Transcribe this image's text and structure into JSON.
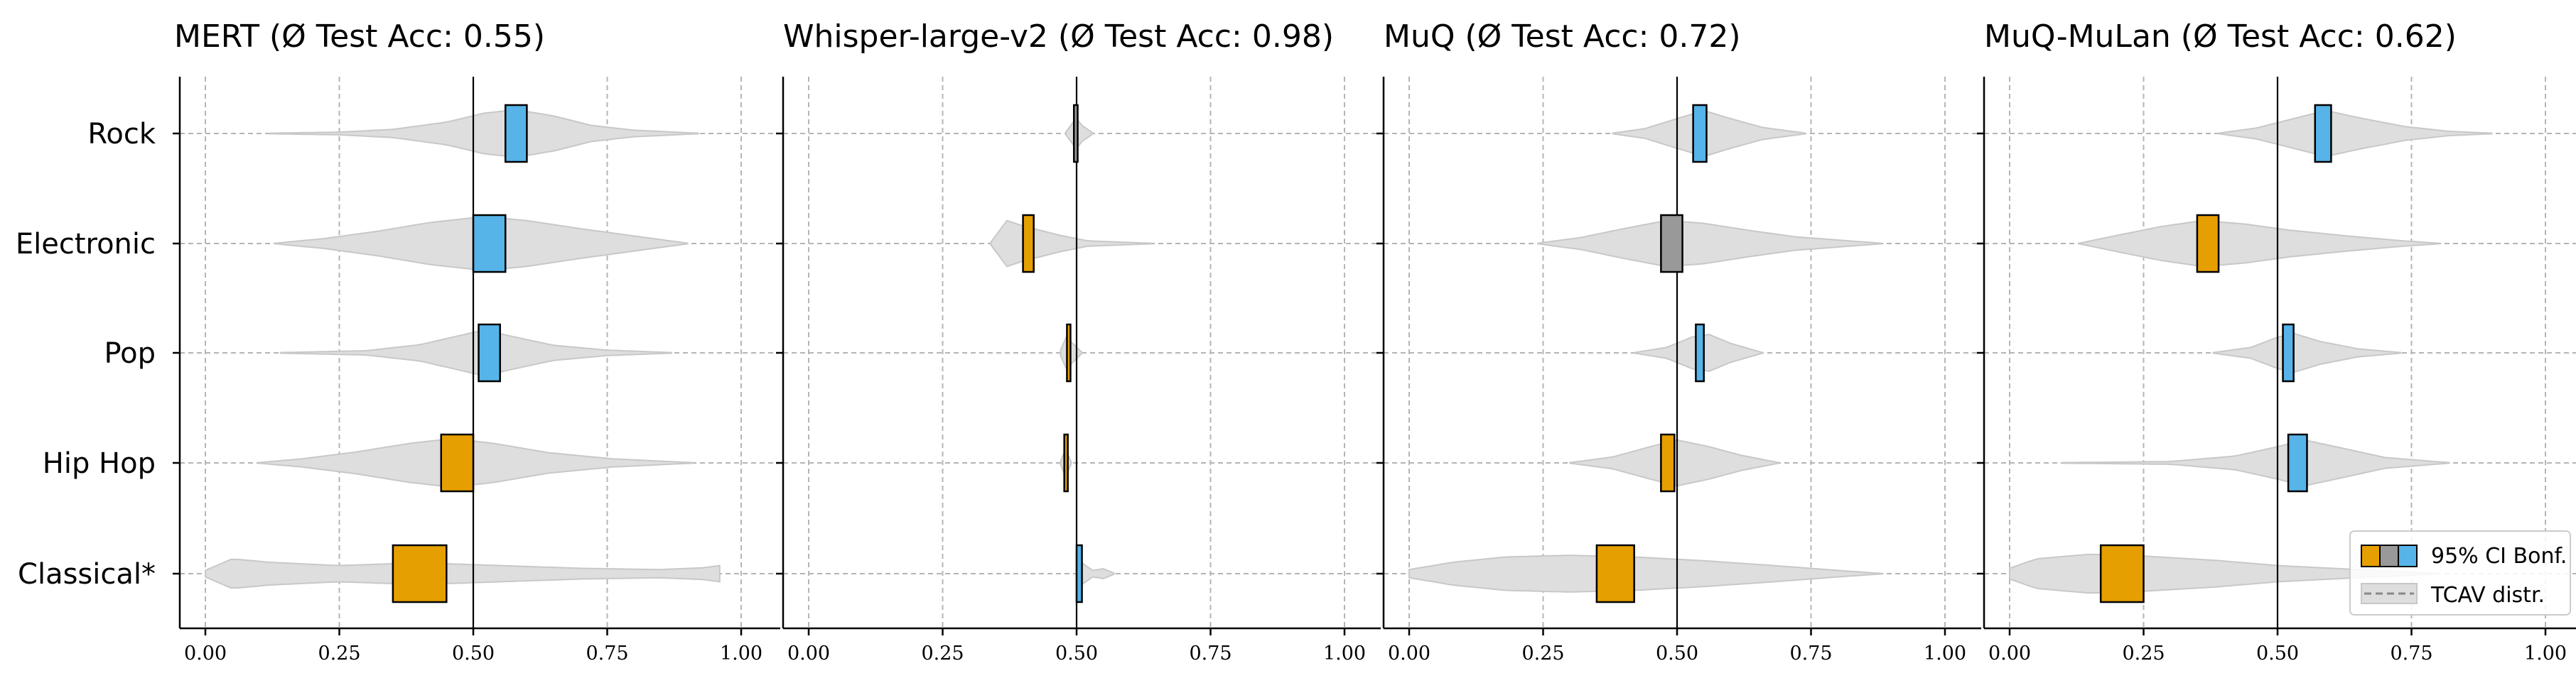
{
  "colors": {
    "negative": "#E69F00",
    "neutral": "#999999",
    "positive": "#56B4E9",
    "violin": "#dedede",
    "violin_edge": "#c8c8c8",
    "grid": "#b5b5b5"
  },
  "legend": {
    "ci_label": "95% CI Bonf.",
    "tcav_label": "TCAV distr.",
    "location": "lower right of last panel"
  },
  "chart_data": [
    {
      "type": "violin",
      "title": "MERT (Ø Test Acc: 0.55)",
      "categories": [
        "Rock",
        "Electronic",
        "Pop",
        "Hip Hop",
        "Classical*"
      ],
      "xlim": [
        0,
        1
      ],
      "xticks": [
        "0.00",
        "0.25",
        "0.50",
        "0.75",
        "1.00"
      ],
      "reference_line": 0.5,
      "grid": true,
      "rows": [
        {
          "label": "Rock",
          "range": [
            0.12,
            0.92
          ],
          "ci": [
            0.56,
            0.6
          ],
          "status": "positive",
          "density": [
            [
              0.12,
              0.01
            ],
            [
              0.25,
              0.05
            ],
            [
              0.35,
              0.15
            ],
            [
              0.45,
              0.42
            ],
            [
              0.52,
              0.75
            ],
            [
              0.58,
              0.88
            ],
            [
              0.65,
              0.65
            ],
            [
              0.72,
              0.3
            ],
            [
              0.8,
              0.12
            ],
            [
              0.92,
              0.01
            ]
          ]
        },
        {
          "label": "Electronic",
          "range": [
            0.13,
            0.9
          ],
          "ci": [
            0.5,
            0.56
          ],
          "status": "positive",
          "density": [
            [
              0.13,
              0.01
            ],
            [
              0.22,
              0.18
            ],
            [
              0.32,
              0.45
            ],
            [
              0.42,
              0.78
            ],
            [
              0.52,
              1.0
            ],
            [
              0.6,
              0.85
            ],
            [
              0.7,
              0.55
            ],
            [
              0.8,
              0.28
            ],
            [
              0.9,
              0.01
            ]
          ]
        },
        {
          "label": "Pop",
          "range": [
            0.14,
            0.87
          ],
          "ci": [
            0.51,
            0.55
          ],
          "status": "positive",
          "density": [
            [
              0.14,
              0.01
            ],
            [
              0.3,
              0.08
            ],
            [
              0.4,
              0.3
            ],
            [
              0.47,
              0.62
            ],
            [
              0.52,
              0.85
            ],
            [
              0.57,
              0.62
            ],
            [
              0.65,
              0.28
            ],
            [
              0.75,
              0.1
            ],
            [
              0.87,
              0.01
            ]
          ]
        },
        {
          "label": "Hip Hop",
          "range": [
            0.1,
            0.91
          ],
          "ci": [
            0.44,
            0.5
          ],
          "status": "negative",
          "density": [
            [
              0.1,
              0.01
            ],
            [
              0.18,
              0.15
            ],
            [
              0.28,
              0.4
            ],
            [
              0.38,
              0.72
            ],
            [
              0.46,
              0.9
            ],
            [
              0.54,
              0.72
            ],
            [
              0.64,
              0.38
            ],
            [
              0.76,
              0.15
            ],
            [
              0.91,
              0.01
            ]
          ]
        },
        {
          "label": "Classical*",
          "range": [
            0.0,
            0.96
          ],
          "ci": [
            0.35,
            0.45
          ],
          "status": "negative",
          "density": [
            [
              0.0,
              0.12
            ],
            [
              0.05,
              0.55
            ],
            [
              0.12,
              0.42
            ],
            [
              0.25,
              0.3
            ],
            [
              0.4,
              0.4
            ],
            [
              0.55,
              0.3
            ],
            [
              0.7,
              0.2
            ],
            [
              0.85,
              0.15
            ],
            [
              0.93,
              0.22
            ],
            [
              0.96,
              0.3
            ]
          ]
        }
      ]
    },
    {
      "type": "violin",
      "title": "Whisper-large-v2 (Ø Test Acc: 0.98)",
      "categories": [
        "Rock",
        "Electronic",
        "Pop",
        "Hip Hop",
        "Classical*"
      ],
      "xlim": [
        0,
        1
      ],
      "xticks": [
        "0.00",
        "0.25",
        "0.50",
        "0.75",
        "1.00"
      ],
      "reference_line": 0.5,
      "grid": true,
      "rows": [
        {
          "label": "Rock",
          "range": [
            0.48,
            0.53
          ],
          "ci": [
            0.495,
            0.502
          ],
          "status": "neutral",
          "density": [
            [
              0.48,
              0.05
            ],
            [
              0.495,
              0.45
            ],
            [
              0.5,
              0.55
            ],
            [
              0.51,
              0.3
            ],
            [
              0.53,
              0.02
            ]
          ]
        },
        {
          "label": "Electronic",
          "range": [
            0.34,
            0.64
          ],
          "ci": [
            0.4,
            0.42
          ],
          "status": "negative",
          "density": [
            [
              0.34,
              0.05
            ],
            [
              0.37,
              0.85
            ],
            [
              0.4,
              0.65
            ],
            [
              0.43,
              0.5
            ],
            [
              0.47,
              0.3
            ],
            [
              0.52,
              0.1
            ],
            [
              0.64,
              0.01
            ]
          ]
        },
        {
          "label": "Pop",
          "range": [
            0.47,
            0.51
          ],
          "ci": [
            0.482,
            0.487
          ],
          "status": "negative",
          "density": [
            [
              0.47,
              0.1
            ],
            [
              0.48,
              0.55
            ],
            [
              0.485,
              0.65
            ],
            [
              0.49,
              0.4
            ],
            [
              0.51,
              0.02
            ]
          ]
        },
        {
          "label": "Hip Hop",
          "range": [
            0.47,
            0.49
          ],
          "ci": [
            0.477,
            0.482
          ],
          "status": "negative",
          "density": [
            [
              0.47,
              0.05
            ],
            [
              0.478,
              0.45
            ],
            [
              0.482,
              0.4
            ],
            [
              0.49,
              0.02
            ]
          ]
        },
        {
          "label": "Classical*",
          "range": [
            0.5,
            0.57
          ],
          "ci": [
            0.5,
            0.51
          ],
          "status": "positive",
          "density": [
            [
              0.5,
              0.15
            ],
            [
              0.505,
              0.55
            ],
            [
              0.51,
              0.4
            ],
            [
              0.53,
              0.12
            ],
            [
              0.55,
              0.18
            ],
            [
              0.57,
              0.02
            ]
          ]
        }
      ]
    },
    {
      "type": "violin",
      "title": "MuQ (Ø Test Acc: 0.72)",
      "categories": [
        "Rock",
        "Electronic",
        "Pop",
        "Hip Hop",
        "Classical*"
      ],
      "xlim": [
        0,
        1
      ],
      "xticks": [
        "0.00",
        "0.25",
        "0.50",
        "0.75",
        "1.00"
      ],
      "reference_line": 0.5,
      "grid": true,
      "rows": [
        {
          "label": "Rock",
          "range": [
            0.38,
            0.74
          ],
          "ci": [
            0.53,
            0.555
          ],
          "status": "positive",
          "density": [
            [
              0.38,
              0.01
            ],
            [
              0.44,
              0.18
            ],
            [
              0.5,
              0.55
            ],
            [
              0.55,
              0.85
            ],
            [
              0.6,
              0.55
            ],
            [
              0.66,
              0.22
            ],
            [
              0.74,
              0.01
            ]
          ]
        },
        {
          "label": "Electronic",
          "range": [
            0.24,
            0.88
          ],
          "ci": [
            0.47,
            0.51
          ],
          "status": "neutral",
          "density": [
            [
              0.24,
              0.01
            ],
            [
              0.32,
              0.22
            ],
            [
              0.4,
              0.55
            ],
            [
              0.48,
              0.85
            ],
            [
              0.55,
              0.75
            ],
            [
              0.63,
              0.5
            ],
            [
              0.72,
              0.25
            ],
            [
              0.88,
              0.01
            ]
          ]
        },
        {
          "label": "Pop",
          "range": [
            0.42,
            0.66
          ],
          "ci": [
            0.535,
            0.55
          ],
          "status": "positive",
          "density": [
            [
              0.42,
              0.01
            ],
            [
              0.48,
              0.2
            ],
            [
              0.53,
              0.6
            ],
            [
              0.56,
              0.68
            ],
            [
              0.6,
              0.35
            ],
            [
              0.66,
              0.01
            ]
          ]
        },
        {
          "label": "Hip Hop",
          "range": [
            0.3,
            0.69
          ],
          "ci": [
            0.47,
            0.495
          ],
          "status": "negative",
          "density": [
            [
              0.3,
              0.01
            ],
            [
              0.38,
              0.22
            ],
            [
              0.45,
              0.6
            ],
            [
              0.5,
              0.85
            ],
            [
              0.56,
              0.6
            ],
            [
              0.62,
              0.28
            ],
            [
              0.69,
              0.01
            ]
          ]
        },
        {
          "label": "Classical*",
          "range": [
            0.0,
            0.88
          ],
          "ci": [
            0.35,
            0.42
          ],
          "status": "negative",
          "density": [
            [
              0.0,
              0.15
            ],
            [
              0.08,
              0.42
            ],
            [
              0.18,
              0.62
            ],
            [
              0.3,
              0.68
            ],
            [
              0.42,
              0.62
            ],
            [
              0.55,
              0.48
            ],
            [
              0.68,
              0.3
            ],
            [
              0.8,
              0.12
            ],
            [
              0.88,
              0.01
            ]
          ]
        }
      ]
    },
    {
      "type": "violin",
      "title": "MuQ-MuLan (Ø Test Acc: 0.62)",
      "categories": [
        "Rock",
        "Electronic",
        "Pop",
        "Hip Hop",
        "Classical*"
      ],
      "xlim": [
        0,
        1
      ],
      "xticks": [
        "0.00",
        "0.25",
        "0.50",
        "0.75",
        "1.00"
      ],
      "reference_line": 0.5,
      "grid": true,
      "rows": [
        {
          "label": "Rock",
          "range": [
            0.39,
            0.9
          ],
          "ci": [
            0.57,
            0.6
          ],
          "status": "positive",
          "density": [
            [
              0.39,
              0.01
            ],
            [
              0.46,
              0.2
            ],
            [
              0.53,
              0.55
            ],
            [
              0.59,
              0.85
            ],
            [
              0.66,
              0.55
            ],
            [
              0.74,
              0.25
            ],
            [
              0.82,
              0.08
            ],
            [
              0.9,
              0.01
            ]
          ]
        },
        {
          "label": "Electronic",
          "range": [
            0.13,
            0.8
          ],
          "ci": [
            0.35,
            0.39
          ],
          "status": "negative",
          "density": [
            [
              0.13,
              0.01
            ],
            [
              0.2,
              0.3
            ],
            [
              0.28,
              0.62
            ],
            [
              0.36,
              0.85
            ],
            [
              0.44,
              0.72
            ],
            [
              0.52,
              0.5
            ],
            [
              0.62,
              0.3
            ],
            [
              0.72,
              0.12
            ],
            [
              0.8,
              0.01
            ]
          ]
        },
        {
          "label": "Pop",
          "range": [
            0.38,
            0.73
          ],
          "ci": [
            0.51,
            0.53
          ],
          "status": "positive",
          "density": [
            [
              0.38,
              0.01
            ],
            [
              0.45,
              0.2
            ],
            [
              0.5,
              0.58
            ],
            [
              0.53,
              0.72
            ],
            [
              0.58,
              0.42
            ],
            [
              0.65,
              0.15
            ],
            [
              0.73,
              0.01
            ]
          ]
        },
        {
          "label": "Hip Hop",
          "range": [
            0.1,
            0.82
          ],
          "ci": [
            0.52,
            0.555
          ],
          "status": "positive",
          "density": [
            [
              0.1,
              0.01
            ],
            [
              0.3,
              0.05
            ],
            [
              0.42,
              0.25
            ],
            [
              0.5,
              0.6
            ],
            [
              0.55,
              0.85
            ],
            [
              0.62,
              0.55
            ],
            [
              0.7,
              0.2
            ],
            [
              0.82,
              0.01
            ]
          ]
        },
        {
          "label": "Classical*",
          "range": [
            0.0,
            0.8
          ],
          "ci": [
            0.17,
            0.25
          ],
          "status": "negative",
          "density": [
            [
              0.0,
              0.2
            ],
            [
              0.05,
              0.55
            ],
            [
              0.15,
              0.72
            ],
            [
              0.25,
              0.65
            ],
            [
              0.38,
              0.5
            ],
            [
              0.5,
              0.3
            ],
            [
              0.65,
              0.15
            ],
            [
              0.8,
              0.01
            ]
          ]
        }
      ]
    }
  ]
}
